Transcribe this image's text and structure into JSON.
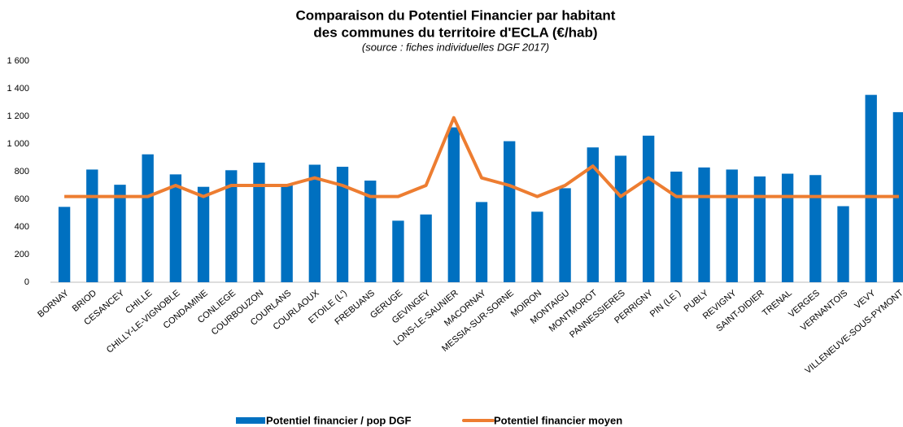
{
  "chart_data": {
    "type": "bar",
    "title": [
      "Comparaison du Potentiel Financier par habitant",
      "des communes du territoire d'ECLA (€/hab)"
    ],
    "subtitle": "(source : fiches individuelles DGF 2017)",
    "categories": [
      "BORNAY",
      "BRIOD",
      "CESANCEY",
      "CHILLE",
      "CHILLY-LE-VIGNOBLE",
      "CONDAMINE",
      "CONLIEGE",
      "COURBOUZON",
      "COURLANS",
      "COURLAOUX",
      "ETOILE (L')",
      "FREBUANS",
      "GERUGE",
      "GEVINGEY",
      "LONS-LE-SAUNIER",
      "MACORNAY",
      "MESSIA-SUR-SORNE",
      "MOIRON",
      "MONTAIGU",
      "MONTMOROT",
      "PANNESSIERES",
      "PERRIGNY",
      "PIN (LE )",
      "PUBLY",
      "REVIGNY",
      "SAINT-DIDIER",
      "TRENAL",
      "VERGES",
      "VERNANTOIS",
      "VEVY",
      "VILLENEUVE-SOUS-PYMONT"
    ],
    "series": [
      {
        "name": "Potentiel financier / pop DGF",
        "type": "bar",
        "color": "#0070c0",
        "values": [
          545,
          815,
          705,
          925,
          780,
          690,
          810,
          865,
          700,
          850,
          835,
          735,
          445,
          490,
          1120,
          580,
          1020,
          510,
          680,
          975,
          915,
          1060,
          800,
          830,
          815,
          765,
          785,
          775,
          550,
          1355,
          1230
        ]
      },
      {
        "name": "Potentiel financier moyen",
        "type": "line",
        "color": "#ed7d31",
        "values": [
          620,
          620,
          620,
          620,
          700,
          620,
          700,
          700,
          700,
          755,
          700,
          620,
          620,
          700,
          1190,
          755,
          700,
          620,
          700,
          840,
          620,
          755,
          620,
          620,
          620,
          620,
          620,
          620,
          620,
          620,
          620
        ]
      }
    ],
    "ylim": [
      0,
      1600
    ],
    "yticks": [
      0,
      200,
      400,
      600,
      800,
      {
        "value": 1000,
        "label": "1 000"
      },
      {
        "value": 1200,
        "label": "1 200"
      },
      {
        "value": 1400,
        "label": "1 400"
      },
      {
        "value": 1600,
        "label": "1 600"
      }
    ],
    "grid": false,
    "legend": "bottom"
  }
}
